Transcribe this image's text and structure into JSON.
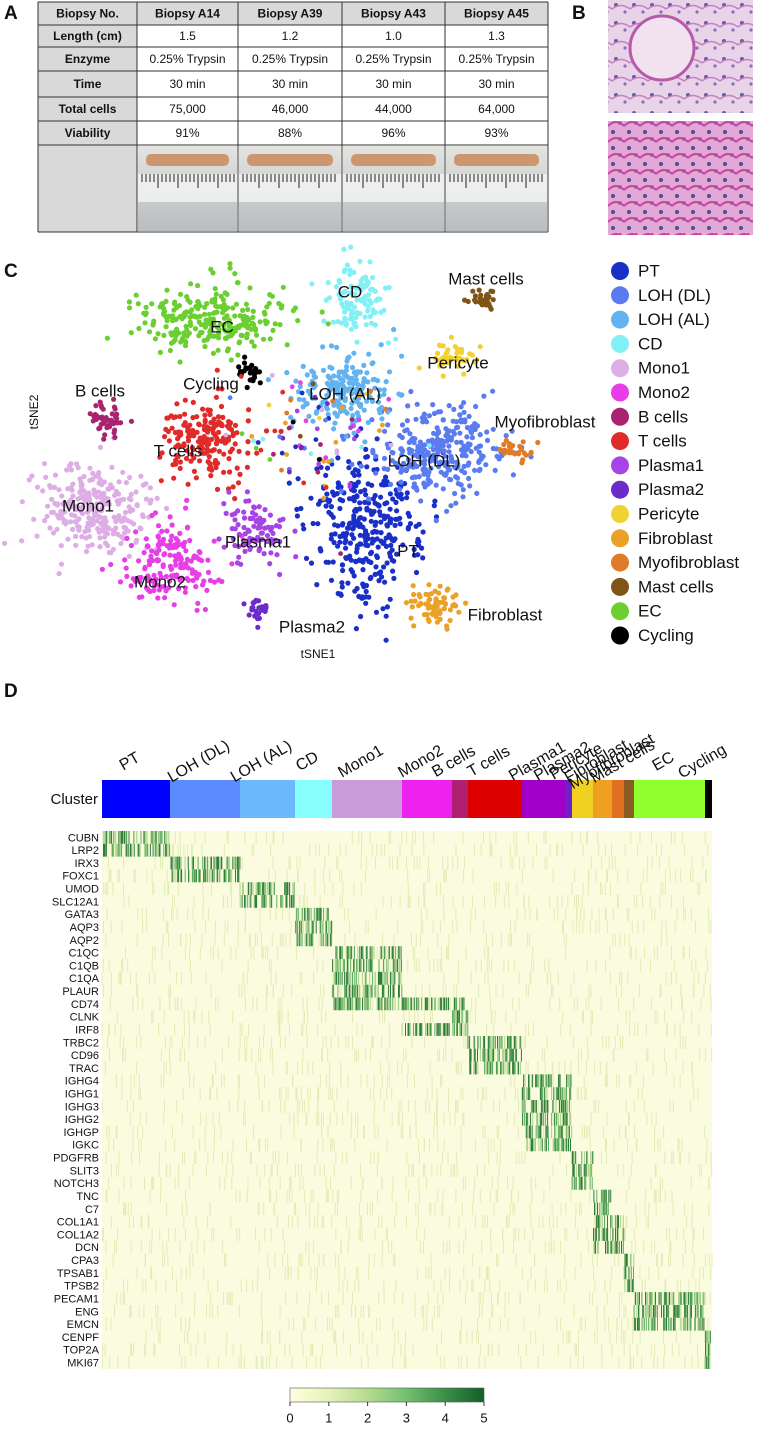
{
  "panel_labels": [
    "A",
    "B",
    "C",
    "D"
  ],
  "table": {
    "header": [
      "Biopsy No.",
      "Biopsy A14",
      "Biopsy A39",
      "Biopsy A43",
      "Biopsy A45"
    ],
    "rows": [
      [
        "Length (cm)",
        "1.5",
        "1.2",
        "1.0",
        "1.3"
      ],
      [
        "Enzyme",
        "0.25% Trypsin",
        "0.25% Trypsin",
        "0.25% Trypsin",
        "0.25% Trypsin"
      ],
      [
        "Time",
        "30 min",
        "30 min",
        "30 min",
        "30 min"
      ],
      [
        "Total cells",
        "75,000",
        "46,000",
        "44,000",
        "64,000"
      ],
      [
        "Viability",
        "91%",
        "88%",
        "96%",
        "93%"
      ]
    ]
  },
  "tsne": {
    "type": "scatter",
    "x_label": "tSNE1",
    "y_label": "tSNE2",
    "clusters": [
      {
        "name": "PT",
        "color": "#1a2fc7"
      },
      {
        "name": "LOH (DL)",
        "color": "#5b7cf0"
      },
      {
        "name": "LOH (AL)",
        "color": "#62b3f0"
      },
      {
        "name": "CD",
        "color": "#82f0f5"
      },
      {
        "name": "Mono1",
        "color": "#ddaee5"
      },
      {
        "name": "Mono2",
        "color": "#e83ee8"
      },
      {
        "name": "B cells",
        "color": "#a8246f"
      },
      {
        "name": "T cells",
        "color": "#e02b2b"
      },
      {
        "name": "Plasma1",
        "color": "#a744e6"
      },
      {
        "name": "Plasma2",
        "color": "#6c2bc9"
      },
      {
        "name": "Pericyte",
        "color": "#f0d234"
      },
      {
        "name": "Fibroblast",
        "color": "#eba127"
      },
      {
        "name": "Myofibroblast",
        "color": "#e07b2a"
      },
      {
        "name": "Mast cells",
        "color": "#7f5416"
      },
      {
        "name": "EC",
        "color": "#6bcf32"
      },
      {
        "name": "Cycling",
        "color": "#000000"
      }
    ]
  },
  "heatmap": {
    "row_header": "Cluster",
    "clusters": [
      {
        "name": "PT",
        "color": "#0000ff"
      },
      {
        "name": "LOH (DL)",
        "color": "#5b8cff"
      },
      {
        "name": "LOH (AL)",
        "color": "#6bb8ff"
      },
      {
        "name": "CD",
        "color": "#88ffff"
      },
      {
        "name": "Mono1",
        "color": "#c99bd8"
      },
      {
        "name": "Mono2",
        "color": "#ee22ee"
      },
      {
        "name": "B cells",
        "color": "#b02070"
      },
      {
        "name": "T cells",
        "color": "#dd0000"
      },
      {
        "name": "Plasma1",
        "color": "#a000c8"
      },
      {
        "name": "Plasma2",
        "color": "#7020c8"
      },
      {
        "name": "Pericyte",
        "color": "#f0d020"
      },
      {
        "name": "Fibroblast",
        "color": "#f0a020"
      },
      {
        "name": "Myofibroblast",
        "color": "#e07020"
      },
      {
        "name": "Mast cells",
        "color": "#8b5a20"
      },
      {
        "name": "EC",
        "color": "#90ff30"
      },
      {
        "name": "Cycling",
        "color": "#000000"
      }
    ],
    "genes": [
      "CUBN",
      "LRP2",
      "IRX3",
      "FOXC1",
      "UMOD",
      "SLC12A1",
      "GATA3",
      "AQP3",
      "AQP2",
      "C1QC",
      "C1QB",
      "C1QA",
      "PLAUR",
      "CD74",
      "CLNK",
      "IRF8",
      "TRBC2",
      "CD96",
      "TRAC",
      "IGHG4",
      "IGHG1",
      "IGHG3",
      "IGHG2",
      "IGHGP",
      "IGKC",
      "PDGFRB",
      "SLIT3",
      "NOTCH3",
      "TNC",
      "C7",
      "COL1A1",
      "COL1A2",
      "DCN",
      "CPA3",
      "TPSAB1",
      "TPSB2",
      "PECAM1",
      "ENG",
      "EMCN",
      "CENPF",
      "TOP2A",
      "MKI67"
    ],
    "colorbar": {
      "lim": [
        0,
        5
      ],
      "ticks": [
        0,
        1,
        2,
        3,
        4,
        5
      ]
    }
  }
}
